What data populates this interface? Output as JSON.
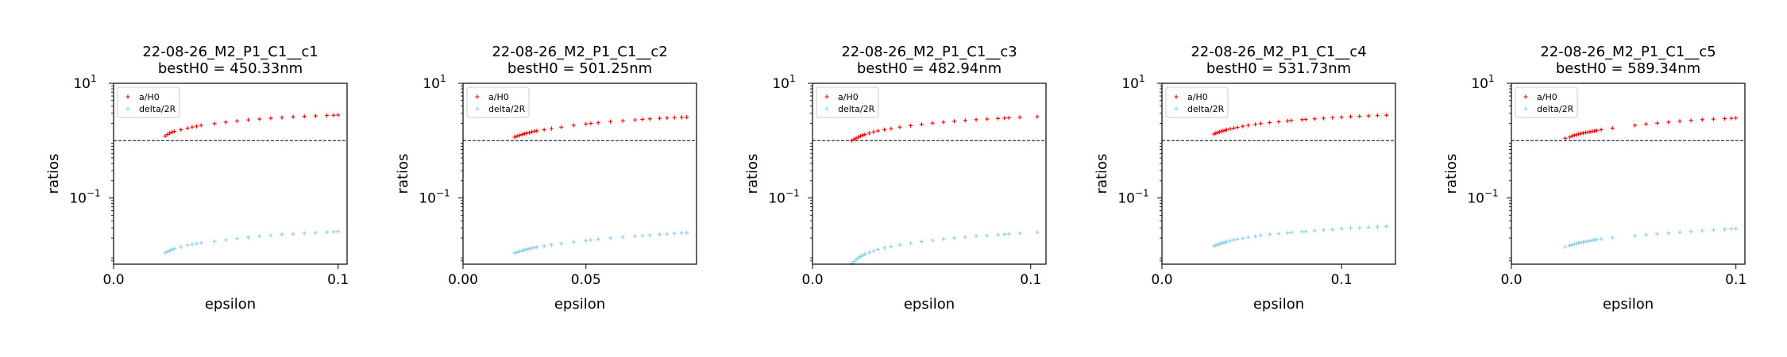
{
  "colors": {
    "a_h0": "#ff0000",
    "delta_2r": "#87ceeb",
    "reference_line": "#000000"
  },
  "chart_data": [
    {
      "type": "scatter",
      "title": "22-08-26_M2_P1_C1__c1",
      "subtitle": "bestH0 = 450.33nm",
      "xlabel": "epsilon",
      "ylabel": "ratios",
      "yscale": "log",
      "xlim": [
        0.0,
        0.104
      ],
      "ylim": [
        0.007,
        10
      ],
      "xticks": [
        {
          "value": 0.0,
          "label": "0.0"
        },
        {
          "value": 0.1,
          "label": "0.1"
        }
      ],
      "yticks": [
        {
          "value": 0.1,
          "exp": "−1"
        },
        {
          "value": 10,
          "exp": "1"
        }
      ],
      "reference_line": 1,
      "legend_position": "top-left",
      "series": [
        {
          "name": "a/H0",
          "x": [
            0.023,
            0.024,
            0.025,
            0.026,
            0.027,
            0.03,
            0.033,
            0.035,
            0.037,
            0.039,
            0.045,
            0.05,
            0.055,
            0.06,
            0.065,
            0.07,
            0.075,
            0.08,
            0.085,
            0.09,
            0.095,
            0.098,
            0.1
          ],
          "y": [
            1.2,
            1.28,
            1.35,
            1.4,
            1.45,
            1.55,
            1.65,
            1.72,
            1.78,
            1.85,
            1.98,
            2.1,
            2.2,
            2.3,
            2.38,
            2.46,
            2.53,
            2.6,
            2.65,
            2.7,
            2.75,
            2.78,
            2.8
          ]
        },
        {
          "name": "delta/2R",
          "x": [
            0.023,
            0.024,
            0.025,
            0.026,
            0.027,
            0.03,
            0.033,
            0.035,
            0.037,
            0.039,
            0.045,
            0.05,
            0.055,
            0.06,
            0.065,
            0.07,
            0.075,
            0.08,
            0.085,
            0.09,
            0.095,
            0.098,
            0.1
          ],
          "y": [
            0.011,
            0.0115,
            0.012,
            0.0125,
            0.013,
            0.014,
            0.015,
            0.0155,
            0.016,
            0.0165,
            0.0175,
            0.0185,
            0.0195,
            0.0205,
            0.0215,
            0.0222,
            0.023,
            0.0235,
            0.0242,
            0.0248,
            0.0255,
            0.0258,
            0.026
          ]
        }
      ]
    },
    {
      "type": "scatter",
      "title": "22-08-26_M2_P1_C1__c2",
      "subtitle": "bestH0 = 501.25nm",
      "xlabel": "epsilon",
      "ylabel": "ratios",
      "yscale": "log",
      "xlim": [
        0.0,
        0.095
      ],
      "ylim": [
        0.007,
        10
      ],
      "xticks": [
        {
          "value": 0.0,
          "label": "0.00"
        },
        {
          "value": 0.05,
          "label": "0.05"
        }
      ],
      "yticks": [
        {
          "value": 0.1,
          "exp": "−1"
        },
        {
          "value": 10,
          "exp": "1"
        }
      ],
      "reference_line": 1,
      "legend_position": "top-left",
      "series": [
        {
          "name": "a/H0",
          "x": [
            0.021,
            0.022,
            0.023,
            0.024,
            0.025,
            0.026,
            0.027,
            0.028,
            0.029,
            0.03,
            0.033,
            0.036,
            0.04,
            0.045,
            0.05,
            0.052,
            0.055,
            0.06,
            0.065,
            0.07,
            0.073,
            0.076,
            0.08,
            0.083,
            0.086,
            0.089,
            0.091
          ],
          "y": [
            1.15,
            1.2,
            1.24,
            1.28,
            1.32,
            1.35,
            1.38,
            1.42,
            1.45,
            1.48,
            1.55,
            1.62,
            1.72,
            1.85,
            1.95,
            2.0,
            2.05,
            2.15,
            2.22,
            2.3,
            2.35,
            2.4,
            2.45,
            2.48,
            2.52,
            2.55,
            2.57
          ]
        },
        {
          "name": "delta/2R",
          "x": [
            0.021,
            0.022,
            0.023,
            0.024,
            0.025,
            0.026,
            0.027,
            0.028,
            0.029,
            0.03,
            0.033,
            0.036,
            0.04,
            0.045,
            0.05,
            0.052,
            0.055,
            0.06,
            0.065,
            0.07,
            0.073,
            0.076,
            0.08,
            0.083,
            0.086,
            0.089,
            0.091
          ],
          "y": [
            0.011,
            0.0113,
            0.0117,
            0.012,
            0.0124,
            0.0127,
            0.013,
            0.0133,
            0.0136,
            0.0138,
            0.0145,
            0.0152,
            0.016,
            0.017,
            0.018,
            0.0185,
            0.019,
            0.02,
            0.0208,
            0.0215,
            0.022,
            0.0225,
            0.023,
            0.0235,
            0.024,
            0.0244,
            0.0248
          ]
        }
      ]
    },
    {
      "type": "scatter",
      "title": "22-08-26_M2_P1_C1__c3",
      "subtitle": "bestH0 = 482.94nm",
      "xlabel": "epsilon",
      "ylabel": "ratios",
      "yscale": "log",
      "xlim": [
        0.0,
        0.107
      ],
      "ylim": [
        0.007,
        10
      ],
      "xticks": [
        {
          "value": 0.0,
          "label": "0.0"
        },
        {
          "value": 0.1,
          "label": "0.1"
        }
      ],
      "yticks": [
        {
          "value": 0.1,
          "exp": "−1"
        },
        {
          "value": 10,
          "exp": "1"
        }
      ],
      "reference_line": 1,
      "legend_position": "top-left",
      "series": [
        {
          "name": "a/H0",
          "x": [
            0.018,
            0.019,
            0.02,
            0.021,
            0.022,
            0.023,
            0.024,
            0.026,
            0.028,
            0.03,
            0.033,
            0.036,
            0.04,
            0.045,
            0.05,
            0.055,
            0.06,
            0.065,
            0.07,
            0.075,
            0.08,
            0.085,
            0.088,
            0.09,
            0.095,
            0.103
          ],
          "y": [
            1.0,
            1.05,
            1.1,
            1.15,
            1.2,
            1.24,
            1.28,
            1.35,
            1.42,
            1.48,
            1.55,
            1.62,
            1.72,
            1.82,
            1.92,
            2.02,
            2.1,
            2.18,
            2.25,
            2.32,
            2.38,
            2.44,
            2.47,
            2.5,
            2.55,
            2.62
          ]
        },
        {
          "name": "delta/2R",
          "x": [
            0.018,
            0.019,
            0.02,
            0.021,
            0.022,
            0.023,
            0.024,
            0.026,
            0.028,
            0.03,
            0.033,
            0.036,
            0.04,
            0.045,
            0.05,
            0.055,
            0.06,
            0.065,
            0.07,
            0.075,
            0.08,
            0.085,
            0.088,
            0.09,
            0.095,
            0.103
          ],
          "y": [
            0.0072,
            0.0078,
            0.0084,
            0.009,
            0.0095,
            0.01,
            0.0105,
            0.0112,
            0.012,
            0.0127,
            0.0135,
            0.0142,
            0.0152,
            0.0163,
            0.0173,
            0.0183,
            0.0192,
            0.02,
            0.0208,
            0.0215,
            0.0222,
            0.0228,
            0.0232,
            0.0236,
            0.0242,
            0.0252
          ]
        }
      ]
    },
    {
      "type": "scatter",
      "title": "22-08-26_M2_P1_C1__c4",
      "subtitle": "bestH0 = 531.73nm",
      "xlabel": "epsilon",
      "ylabel": "ratios",
      "yscale": "log",
      "xlim": [
        0.0,
        0.13
      ],
      "ylim": [
        0.007,
        10
      ],
      "xticks": [
        {
          "value": 0.0,
          "label": "0.0"
        },
        {
          "value": 0.1,
          "label": "0.1"
        }
      ],
      "yticks": [
        {
          "value": 0.1,
          "exp": "−1"
        },
        {
          "value": 10,
          "exp": "1"
        }
      ],
      "reference_line": 1,
      "legend_position": "top-left",
      "series": [
        {
          "name": "a/H0",
          "x": [
            0.029,
            0.03,
            0.031,
            0.032,
            0.033,
            0.034,
            0.035,
            0.036,
            0.038,
            0.04,
            0.042,
            0.045,
            0.048,
            0.052,
            0.055,
            0.06,
            0.065,
            0.07,
            0.072,
            0.078,
            0.08,
            0.085,
            0.09,
            0.095,
            0.1,
            0.105,
            0.11,
            0.115,
            0.12,
            0.125
          ],
          "y": [
            1.3,
            1.35,
            1.38,
            1.42,
            1.45,
            1.48,
            1.5,
            1.55,
            1.6,
            1.65,
            1.7,
            1.78,
            1.85,
            1.92,
            1.98,
            2.06,
            2.14,
            2.2,
            2.25,
            2.32,
            2.35,
            2.4,
            2.46,
            2.52,
            2.56,
            2.62,
            2.66,
            2.7,
            2.74,
            2.78
          ]
        },
        {
          "name": "delta/2R",
          "x": [
            0.029,
            0.03,
            0.031,
            0.032,
            0.033,
            0.034,
            0.035,
            0.036,
            0.038,
            0.04,
            0.042,
            0.045,
            0.048,
            0.052,
            0.055,
            0.06,
            0.065,
            0.07,
            0.072,
            0.078,
            0.08,
            0.085,
            0.09,
            0.095,
            0.1,
            0.105,
            0.11,
            0.115,
            0.12,
            0.125
          ],
          "y": [
            0.0145,
            0.015,
            0.0154,
            0.0158,
            0.0162,
            0.0165,
            0.0168,
            0.0172,
            0.0178,
            0.0185,
            0.019,
            0.0198,
            0.0206,
            0.0215,
            0.0222,
            0.023,
            0.0238,
            0.0245,
            0.025,
            0.0258,
            0.026,
            0.0268,
            0.0275,
            0.0282,
            0.029,
            0.0296,
            0.0302,
            0.0308,
            0.0314,
            0.032
          ]
        }
      ]
    },
    {
      "type": "scatter",
      "title": "22-08-26_M2_P1_C1__c5",
      "subtitle": "bestH0 = 589.34nm",
      "xlabel": "epsilon",
      "ylabel": "ratios",
      "yscale": "log",
      "xlim": [
        0.0,
        0.104
      ],
      "ylim": [
        0.007,
        10
      ],
      "xticks": [
        {
          "value": 0.0,
          "label": "0.0"
        },
        {
          "value": 0.1,
          "label": "0.1"
        }
      ],
      "yticks": [
        {
          "value": 0.1,
          "exp": "−1"
        },
        {
          "value": 10,
          "exp": "1"
        }
      ],
      "reference_line": 1,
      "legend_position": "top-left",
      "series": [
        {
          "name": "a/H0",
          "x": [
            0.024,
            0.026,
            0.027,
            0.028,
            0.029,
            0.03,
            0.031,
            0.032,
            0.033,
            0.034,
            0.035,
            0.036,
            0.037,
            0.038,
            0.04,
            0.045,
            0.055,
            0.06,
            0.065,
            0.07,
            0.075,
            0.08,
            0.085,
            0.09,
            0.095,
            0.098,
            0.1
          ],
          "y": [
            1.1,
            1.15,
            1.2,
            1.24,
            1.27,
            1.3,
            1.33,
            1.36,
            1.38,
            1.4,
            1.42,
            1.45,
            1.47,
            1.5,
            1.55,
            1.65,
            1.85,
            1.95,
            2.02,
            2.1,
            2.18,
            2.25,
            2.32,
            2.38,
            2.42,
            2.45,
            2.48
          ]
        },
        {
          "name": "delta/2R",
          "x": [
            0.024,
            0.026,
            0.027,
            0.028,
            0.029,
            0.03,
            0.031,
            0.032,
            0.033,
            0.034,
            0.035,
            0.036,
            0.037,
            0.038,
            0.04,
            0.045,
            0.055,
            0.06,
            0.065,
            0.07,
            0.075,
            0.08,
            0.085,
            0.09,
            0.095,
            0.098,
            0.1
          ],
          "y": [
            0.014,
            0.0148,
            0.0153,
            0.0157,
            0.016,
            0.0164,
            0.0167,
            0.017,
            0.0173,
            0.0176,
            0.0179,
            0.0182,
            0.0185,
            0.0188,
            0.0192,
            0.0202,
            0.022,
            0.0228,
            0.0236,
            0.0244,
            0.0252,
            0.026,
            0.0268,
            0.0276,
            0.0284,
            0.0288,
            0.0292
          ]
        }
      ]
    }
  ]
}
